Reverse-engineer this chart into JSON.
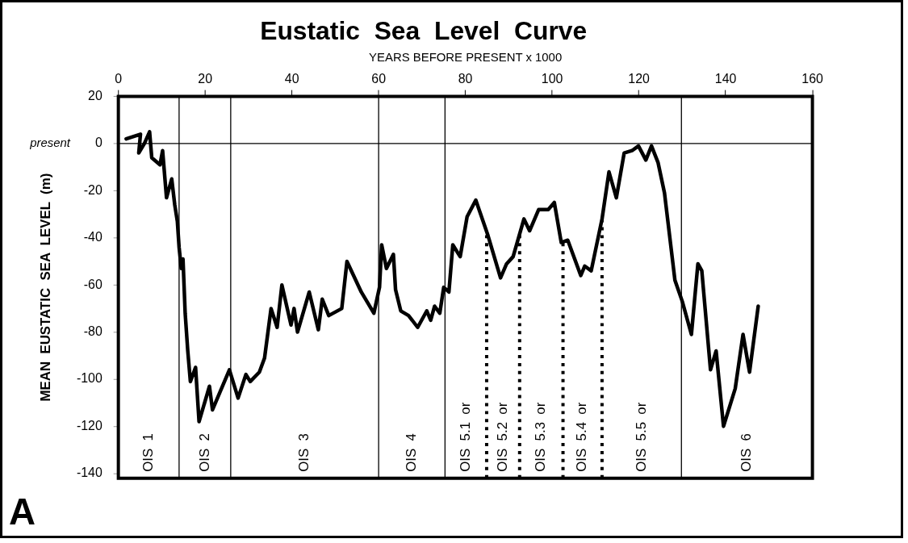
{
  "chart_data": {
    "type": "line",
    "title": "Eustatic  Sea  Level  Curve",
    "xlabel": "YEARS BEFORE PRESENT x 1000",
    "ylabel": "MEAN  EUSTATIC  SEA  LEVEL  (m)",
    "xlim": [
      0,
      160
    ],
    "xticks": [
      0,
      20,
      40,
      60,
      80,
      100,
      120,
      140,
      160
    ],
    "ylim": [
      -142,
      20
    ],
    "yticks": [
      -140,
      -120,
      -100,
      -80,
      -60,
      -40,
      -20,
      0,
      20
    ],
    "grid": false,
    "legend": false,
    "marker": "none",
    "line_style": "solid",
    "series": [
      {
        "color": "#000000",
        "x": [
          1.8,
          5.1,
          4.7,
          6.0,
          7.2,
          7.7,
          9.6,
          10.2,
          11.1,
          12.3,
          13.0,
          13.6,
          14.0,
          14.5,
          14.9,
          15.4,
          16.0,
          16.6,
          17.8,
          18.6,
          21,
          21.7,
          25.6,
          27.6,
          29.4,
          30.4,
          32.5,
          33.7,
          35.2,
          36.6,
          37.7,
          39.8,
          40.5,
          41.3,
          44,
          46.1,
          47,
          48.5,
          51.5,
          52.7,
          56,
          58.9,
          60.2,
          60.7,
          61.8,
          63.4,
          63.9,
          65.1,
          66.9,
          69.0,
          71.1,
          72.0,
          72.9,
          74.1,
          75.0,
          76.2,
          77.1,
          78.8,
          80.4,
          82.4,
          85.2,
          88.1,
          89.5,
          91,
          93.5,
          94.8,
          96.9,
          99.1,
          100.5,
          102.1,
          103.6,
          106.6,
          107.5,
          109,
          111.5,
          113.1,
          114.8,
          116.6,
          118.4,
          119.9,
          121.6,
          122.9,
          124.4,
          125.9,
          128.3,
          130.0,
          132.1,
          133.6,
          134.5,
          136.5,
          137.8,
          139.5,
          142.2,
          144,
          145.5,
          147.5
        ],
        "values": [
          2,
          4,
          -4,
          0,
          5,
          -6,
          -9,
          -3,
          -23,
          -15,
          -26,
          -33,
          -44,
          -53,
          -49,
          -72,
          -88,
          -101,
          -95,
          -118,
          -103,
          -113,
          -96,
          -108,
          -98,
          -101,
          -97,
          -91,
          -70,
          -78,
          -60,
          -77,
          -70,
          -80,
          -63,
          -79,
          -66,
          -73,
          -70,
          -50,
          -63,
          -72,
          -61,
          -43,
          -53,
          -47,
          -62,
          -71,
          -73,
          -78,
          -71,
          -75,
          -69,
          -72,
          -61,
          -63,
          -43,
          -48,
          -31,
          -24,
          -39,
          -57,
          -51,
          -48,
          -32,
          -37,
          -28,
          -28,
          -25,
          -42,
          -41,
          -56,
          -52,
          -54,
          -32,
          -12,
          -23,
          -4,
          -3,
          -1,
          -7,
          -1,
          -8,
          -21,
          -58,
          -67,
          -81,
          -51,
          -54,
          -96,
          -88,
          -120,
          -104,
          -81,
          -97,
          -69
        ]
      }
    ],
    "ref_lines": [
      {
        "axis": "y",
        "value": 0,
        "label": "present",
        "line_style": "solid"
      },
      {
        "axis": "x",
        "value": 14,
        "line_style": "solid"
      },
      {
        "axis": "x",
        "value": 25.9,
        "line_style": "solid"
      },
      {
        "axis": "x",
        "value": 60,
        "line_style": "solid"
      },
      {
        "axis": "x",
        "value": 75.3,
        "line_style": "solid"
      },
      {
        "axis": "x",
        "value": 129.8,
        "line_style": "solid"
      },
      {
        "axis": "x",
        "value": 84.9,
        "line_style": "dotted"
      },
      {
        "axis": "x",
        "value": 92.5,
        "line_style": "dotted"
      },
      {
        "axis": "x",
        "value": 102.5,
        "line_style": "dotted"
      },
      {
        "axis": "x",
        "value": 111.5,
        "line_style": "dotted"
      }
    ],
    "annotations": [
      "OIS  1",
      "OIS  2",
      "OIS  3",
      "OIS  4",
      "OIS  5.1  or",
      "OIS  5.2  or",
      "OIS  5.3  or",
      "OIS  5.4  or",
      "OIS  5.5  or",
      "OIS  6",
      "A"
    ]
  }
}
